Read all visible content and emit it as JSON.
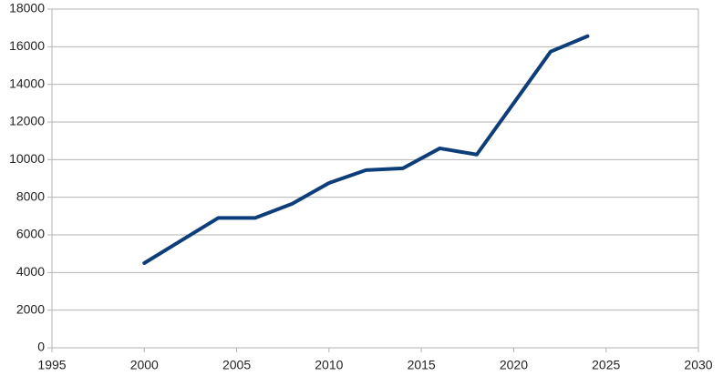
{
  "chart_data": {
    "type": "line",
    "x": [
      2000,
      2002,
      2004,
      2006,
      2008,
      2010,
      2012,
      2014,
      2016,
      2018,
      2020,
      2022,
      2024
    ],
    "series": [
      {
        "color": "#0e3e7a",
        "values": [
          4500,
          5700,
          6900,
          6900,
          7650,
          8760,
          9440,
          9540,
          10600,
          10270,
          13000,
          15740,
          16560
        ]
      }
    ],
    "xlim": [
      1995,
      2030
    ],
    "xticks": [
      1995,
      2000,
      2005,
      2010,
      2015,
      2020,
      2025,
      2030
    ],
    "ylim": [
      0,
      18000
    ],
    "yticks": [
      0,
      2000,
      4000,
      6000,
      8000,
      10000,
      12000,
      14000,
      16000,
      18000
    ],
    "grid": true
  }
}
